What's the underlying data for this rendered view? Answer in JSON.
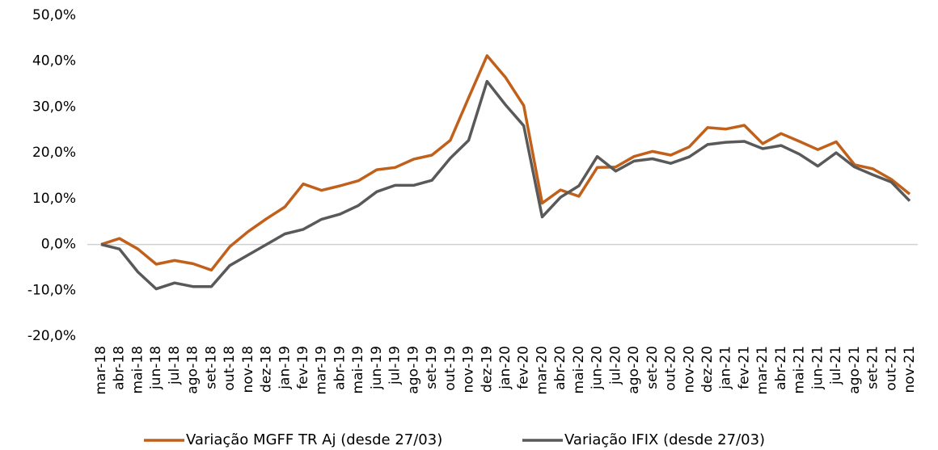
{
  "chart_data": {
    "type": "line",
    "categories": [
      "mar-18",
      "abr-18",
      "mai-18",
      "jun-18",
      "jul-18",
      "ago-18",
      "set-18",
      "out-18",
      "nov-18",
      "dez-18",
      "jan-19",
      "fev-19",
      "mar-19",
      "abr-19",
      "mai-19",
      "jun-19",
      "jul-19",
      "ago-19",
      "set-19",
      "out-19",
      "nov-19",
      "dez-19",
      "jan-20",
      "fev-20",
      "mar-20",
      "abr-20",
      "mai-20",
      "jun-20",
      "jul-20",
      "ago-20",
      "set-20",
      "out-20",
      "nov-20",
      "dez-20",
      "jan-21",
      "fev-21",
      "mar-21",
      "abr-21",
      "mai-21",
      "jun-21",
      "jul-21",
      "ago-21",
      "set-21",
      "out-21",
      "nov-21"
    ],
    "series": [
      {
        "name": "Variação MGFF TR Aj (desde 27/03)",
        "color": "#c0601a",
        "values": [
          0,
          1.3,
          -1,
          -4.3,
          -3.5,
          -4.2,
          -5.6,
          -0.5,
          2.8,
          5.6,
          8.2,
          13.2,
          11.8,
          12.8,
          13.9,
          16.3,
          16.8,
          18.6,
          19.5,
          22.7,
          32,
          41.2,
          36.5,
          30.3,
          9,
          11.9,
          10.5,
          16.8,
          16.9,
          19.2,
          20.3,
          19.5,
          21.3,
          25.5,
          25.2,
          26,
          22,
          24.2,
          22.5,
          20.7,
          22.4,
          17.4,
          16.5,
          14.2,
          11
        ]
      },
      {
        "name": "Variação IFIX (desde 27/03)",
        "color": "#595959",
        "values": [
          0,
          -1,
          -6,
          -9.7,
          -8.4,
          -9.2,
          -9.2,
          -4.6,
          -2.3,
          0,
          2.3,
          3.3,
          5.5,
          6.6,
          8.5,
          11.5,
          12.9,
          12.9,
          14,
          18.8,
          22.7,
          35.6,
          30.5,
          25.9,
          6,
          10.3,
          12.8,
          19.2,
          16,
          18.2,
          18.7,
          17.7,
          19.1,
          21.8,
          22.3,
          22.5,
          20.9,
          21.6,
          19.7,
          17.1,
          20,
          16.9,
          15.2,
          13.6,
          9.5
        ]
      }
    ],
    "ylim": [
      -20,
      50
    ],
    "yticks": [
      {
        "value": -20,
        "label": "-20,0%"
      },
      {
        "value": -10,
        "label": "-10,0%"
      },
      {
        "value": 0,
        "label": "0,0%"
      },
      {
        "value": 10,
        "label": "10,0%"
      },
      {
        "value": 20,
        "label": "20,0%"
      },
      {
        "value": 30,
        "label": "30,0%"
      },
      {
        "value": 40,
        "label": "40,0%"
      },
      {
        "value": 50,
        "label": "50,0%"
      }
    ],
    "grid": false,
    "legend": "bottom"
  }
}
